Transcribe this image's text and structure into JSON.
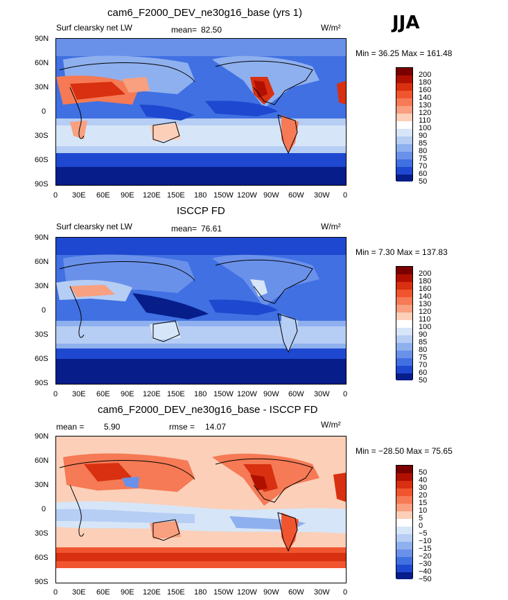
{
  "season": "JJA",
  "units": "W/m²",
  "panels": [
    {
      "title": "cam6_F2000_DEV_ne30g16_base (yrs 1)",
      "left_label": "Surf clearsky net LW",
      "stat_label": "mean=",
      "stat_value": "82.50",
      "stat2_label": "",
      "stat2_value": "",
      "minmax": "Min =   36.25 Max = 161.48",
      "colorbar": [
        "200",
        "180",
        "160",
        "140",
        "130",
        "120",
        "110",
        "100",
        "90",
        "85",
        "80",
        "75",
        "70",
        "60",
        "50"
      ]
    },
    {
      "title": "ISCCP FD",
      "left_label": "Surf clearsky net LW",
      "stat_label": "mean=",
      "stat_value": "76.61",
      "stat2_label": "",
      "stat2_value": "",
      "minmax": "Min =    7.30 Max = 137.83",
      "colorbar": [
        "200",
        "180",
        "160",
        "140",
        "130",
        "120",
        "110",
        "100",
        "90",
        "85",
        "80",
        "75",
        "70",
        "60",
        "50"
      ]
    },
    {
      "title": "cam6_F2000_DEV_ne30g16_base - ISCCP FD",
      "left_label": "mean =",
      "stat_label": "",
      "stat_value": "5.90",
      "stat2_label": "rmse =",
      "stat2_value": "14.07",
      "minmax": "Min = −28.50 Max =  75.65",
      "colorbar": [
        "50",
        "40",
        "30",
        "20",
        "15",
        "10",
        "5",
        "0",
        "−5",
        "−10",
        "−15",
        "−20",
        "−30",
        "−40",
        "−50"
      ]
    }
  ],
  "lat_ticks": [
    "90N",
    "60N",
    "30N",
    "0",
    "30S",
    "60S",
    "90S"
  ],
  "lon_ticks": [
    "0",
    "30E",
    "60E",
    "90E",
    "120E",
    "150E",
    "180",
    "150W",
    "120W",
    "90W",
    "60W",
    "30W",
    "0"
  ],
  "colors": {
    "abs_scale": [
      "#7a0000",
      "#b01000",
      "#d83010",
      "#f05530",
      "#f57a55",
      "#f8a080",
      "#fbcfb8",
      "#ffffff",
      "#d6e6f8",
      "#b6cdf4",
      "#8fb0ee",
      "#6a91ea",
      "#4070e2",
      "#1e48cf",
      "#061d8a"
    ],
    "diff_scale": [
      "#7a0000",
      "#b01000",
      "#d83010",
      "#f05530",
      "#f57a55",
      "#f8a080",
      "#fbcfb8",
      "#ffffff",
      "#d6e6f8",
      "#b6cdf4",
      "#8fb0ee",
      "#6a91ea",
      "#4070e2",
      "#1e48cf",
      "#061d8a"
    ]
  },
  "chart_data": [
    {
      "type": "heatmap",
      "title": "cam6_F2000_DEV_ne30g16_base (yrs 1)",
      "variable": "Surf clearsky net LW",
      "units": "W/m²",
      "mean": 82.5,
      "min": 36.25,
      "max": 161.48,
      "x_ticks": [
        "0",
        "30E",
        "60E",
        "90E",
        "120E",
        "150E",
        "180",
        "150W",
        "120W",
        "90W",
        "60W",
        "30W",
        "0"
      ],
      "y_ticks": [
        "90N",
        "60N",
        "30N",
        "0",
        "30S",
        "60S",
        "90S"
      ],
      "levels": [
        50,
        60,
        70,
        75,
        80,
        85,
        90,
        100,
        110,
        120,
        130,
        140,
        160,
        180,
        200
      ]
    },
    {
      "type": "heatmap",
      "title": "ISCCP FD",
      "variable": "Surf clearsky net LW",
      "units": "W/m²",
      "mean": 76.61,
      "min": 7.3,
      "max": 137.83,
      "x_ticks": [
        "0",
        "30E",
        "60E",
        "90E",
        "120E",
        "150E",
        "180",
        "150W",
        "120W",
        "90W",
        "60W",
        "30W",
        "0"
      ],
      "y_ticks": [
        "90N",
        "60N",
        "30N",
        "0",
        "30S",
        "60S",
        "90S"
      ],
      "levels": [
        50,
        60,
        70,
        75,
        80,
        85,
        90,
        100,
        110,
        120,
        130,
        140,
        160,
        180,
        200
      ]
    },
    {
      "type": "heatmap",
      "title": "cam6_F2000_DEV_ne30g16_base - ISCCP FD",
      "units": "W/m²",
      "mean": 5.9,
      "rmse": 14.07,
      "min": -28.5,
      "max": 75.65,
      "x_ticks": [
        "0",
        "30E",
        "60E",
        "90E",
        "120E",
        "150E",
        "180",
        "150W",
        "120W",
        "90W",
        "60W",
        "30W",
        "0"
      ],
      "y_ticks": [
        "90N",
        "60N",
        "30N",
        "0",
        "30S",
        "60S",
        "90S"
      ],
      "levels": [
        -50,
        -40,
        -30,
        -20,
        -15,
        -10,
        -5,
        0,
        5,
        10,
        15,
        20,
        30,
        40,
        50
      ]
    }
  ]
}
